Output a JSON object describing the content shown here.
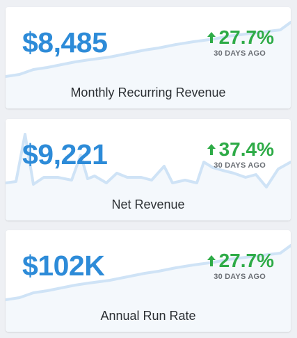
{
  "cards": [
    {
      "value": "$8,485",
      "change": "27.7%",
      "period": "30 DAYS AGO",
      "label": "Monthly Recurring Revenue",
      "trend": "up"
    },
    {
      "value": "$9,221",
      "change": "37.4%",
      "period": "30 DAYS AGO",
      "label": "Net Revenue",
      "trend": "up"
    },
    {
      "value": "$102K",
      "change": "27.7%",
      "period": "30 DAYS AGO",
      "label": "Annual Run Rate",
      "trend": "up"
    }
  ],
  "colors": {
    "value": "#2d8bd8",
    "positive": "#2eab47",
    "sparkline": "#cfe3f6"
  }
}
